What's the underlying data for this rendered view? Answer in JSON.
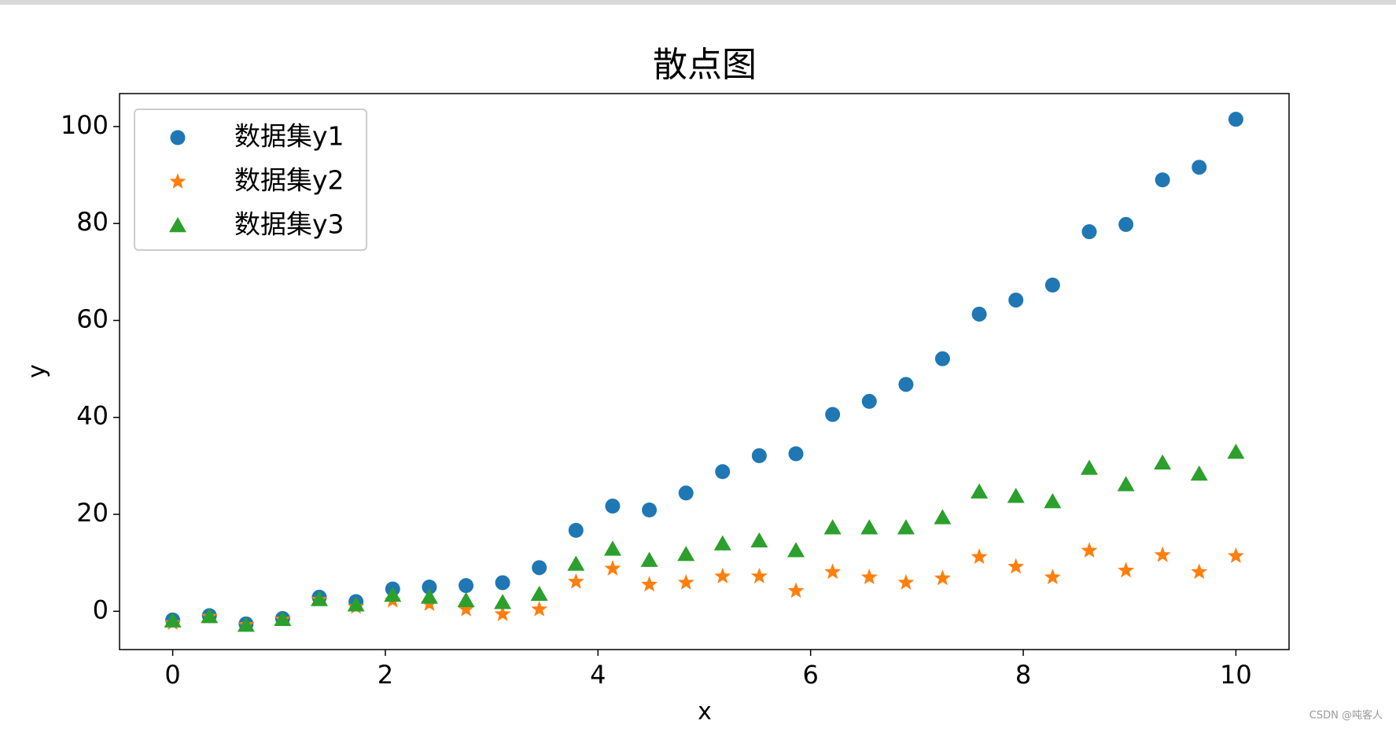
{
  "chart_data": {
    "type": "scatter",
    "title": "散点图",
    "x_label": "x",
    "y_label": "y",
    "x": [
      0,
      0.345,
      0.69,
      1.034,
      1.379,
      1.724,
      2.069,
      2.414,
      2.759,
      3.103,
      3.448,
      3.793,
      4.138,
      4.483,
      4.828,
      5.172,
      5.517,
      5.862,
      6.207,
      6.552,
      6.897,
      7.241,
      7.586,
      7.931,
      8.276,
      8.621,
      8.966,
      9.31,
      9.655,
      10
    ],
    "series": [
      {
        "name": "数据集y1",
        "color": "#1f77b4",
        "marker": "circle",
        "values": [
          -1.8,
          -0.9,
          -2.6,
          -1.5,
          2.9,
          2.0,
          4.6,
          5.0,
          5.3,
          5.9,
          9.0,
          16.7,
          21.7,
          20.9,
          24.4,
          28.8,
          32.1,
          32.5,
          40.6,
          43.3,
          46.8,
          52.1,
          61.3,
          64.2,
          67.3,
          78.3,
          79.8,
          89.0,
          91.6,
          101.5
        ]
      },
      {
        "name": "数据集y2",
        "color": "#ff7f0e",
        "marker": "star",
        "values": [
          -2.4,
          -1.1,
          -2.8,
          -1.7,
          2.4,
          0.9,
          2.2,
          1.5,
          0.4,
          -0.6,
          0.4,
          6.1,
          8.8,
          5.5,
          5.9,
          7.2,
          7.2,
          4.2,
          8.1,
          7.0,
          5.9,
          6.8,
          11.2,
          9.2,
          7.0,
          12.5,
          8.4,
          11.6,
          8.1,
          11.4
        ]
      },
      {
        "name": "数据集y3",
        "color": "#2ca02c",
        "marker": "triangle",
        "values": [
          -2.0,
          -1.1,
          -2.9,
          -1.7,
          2.4,
          1.3,
          3.3,
          2.9,
          2.2,
          1.8,
          3.5,
          9.7,
          12.8,
          10.5,
          11.7,
          13.9,
          14.5,
          12.5,
          17.2,
          17.2,
          17.2,
          19.3,
          24.6,
          23.7,
          22.6,
          29.5,
          26.1,
          30.6,
          28.3,
          32.8
        ]
      }
    ],
    "xlim": [
      -0.5,
      10.5
    ],
    "ylim": [
      -7.9,
      106.8
    ],
    "xticks": [
      0,
      2,
      4,
      6,
      8,
      10
    ],
    "yticks": [
      0,
      20,
      40,
      60,
      80,
      100
    ],
    "legend": "upper left",
    "grid": false
  },
  "watermark": "CSDN @吨客人"
}
